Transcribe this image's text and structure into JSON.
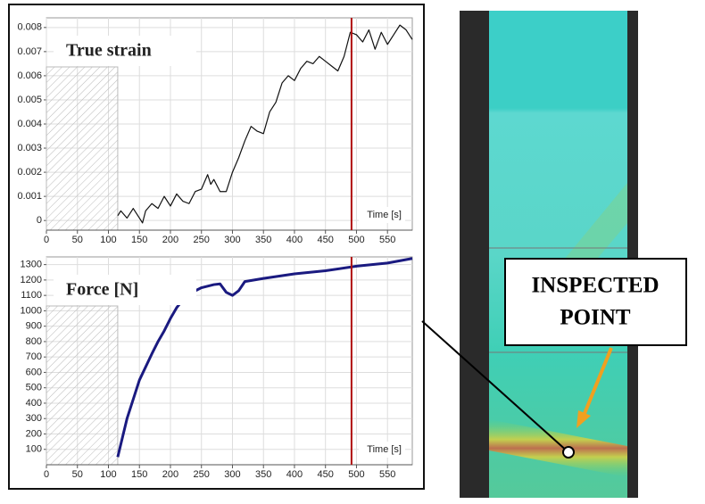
{
  "chart_data": [
    {
      "type": "line",
      "annotation": "True strain",
      "x_label": "Time [s]",
      "x": [
        115,
        120,
        130,
        140,
        150,
        155,
        160,
        170,
        180,
        190,
        200,
        210,
        220,
        230,
        240,
        250,
        260,
        265,
        270,
        280,
        290,
        300,
        310,
        320,
        330,
        340,
        350,
        360,
        370,
        380,
        390,
        400,
        410,
        420,
        430,
        440,
        450,
        460,
        470,
        480,
        490,
        500,
        510,
        520,
        530,
        540,
        550,
        560,
        570,
        580,
        590
      ],
      "values": [
        0.0002,
        0.0004,
        0.0001,
        0.0005,
        0.0001,
        -0.0001,
        0.0004,
        0.0007,
        0.0005,
        0.001,
        0.0006,
        0.0011,
        0.0008,
        0.0007,
        0.0012,
        0.0013,
        0.0019,
        0.0015,
        0.0017,
        0.0012,
        0.0012,
        0.002,
        0.0026,
        0.0033,
        0.0039,
        0.0037,
        0.0036,
        0.0045,
        0.0049,
        0.0057,
        0.006,
        0.0058,
        0.0063,
        0.0066,
        0.0065,
        0.0068,
        0.0066,
        0.0064,
        0.0062,
        0.0068,
        0.0078,
        0.0077,
        0.0074,
        0.0079,
        0.0071,
        0.0078,
        0.0073,
        0.0077,
        0.0081,
        0.0079,
        0.0075
      ],
      "color": "#111111",
      "xlim": [
        0,
        590
      ],
      "ylim": [
        -0.0004,
        0.0084
      ],
      "xticks": [
        0,
        50,
        100,
        150,
        200,
        250,
        300,
        350,
        400,
        450,
        500,
        550
      ],
      "yticks": [
        0,
        0.001,
        0.002,
        0.003,
        0.004,
        0.005,
        0.006,
        0.007,
        0.008
      ],
      "grid": true,
      "vline": 492,
      "vline_color": "#b01010",
      "shaded_xlim": [
        0,
        115
      ]
    },
    {
      "type": "line",
      "annotation": "Force [N]",
      "x_label": "Time [s]",
      "x": [
        115,
        130,
        150,
        170,
        180,
        190,
        200,
        210,
        220,
        230,
        240,
        250,
        260,
        270,
        280,
        290,
        300,
        310,
        320,
        350,
        400,
        450,
        500,
        550,
        590
      ],
      "values": [
        50,
        300,
        550,
        720,
        800,
        870,
        950,
        1020,
        1070,
        1100,
        1130,
        1150,
        1160,
        1170,
        1175,
        1120,
        1100,
        1130,
        1190,
        1210,
        1240,
        1260,
        1290,
        1310,
        1340
      ],
      "color": "#1a1a80",
      "xlim": [
        0,
        590
      ],
      "ylim": [
        0,
        1350
      ],
      "xticks": [
        0,
        50,
        100,
        150,
        200,
        250,
        300,
        350,
        400,
        450,
        500,
        550
      ],
      "yticks": [
        100,
        200,
        300,
        400,
        500,
        600,
        700,
        800,
        900,
        1000,
        1100,
        1200,
        1300
      ],
      "grid": true,
      "vline": 492,
      "vline_color": "#b01010",
      "shaded_xlim": [
        0,
        115
      ]
    }
  ],
  "image": {
    "callout": [
      "INSPECTED",
      "POINT"
    ]
  }
}
